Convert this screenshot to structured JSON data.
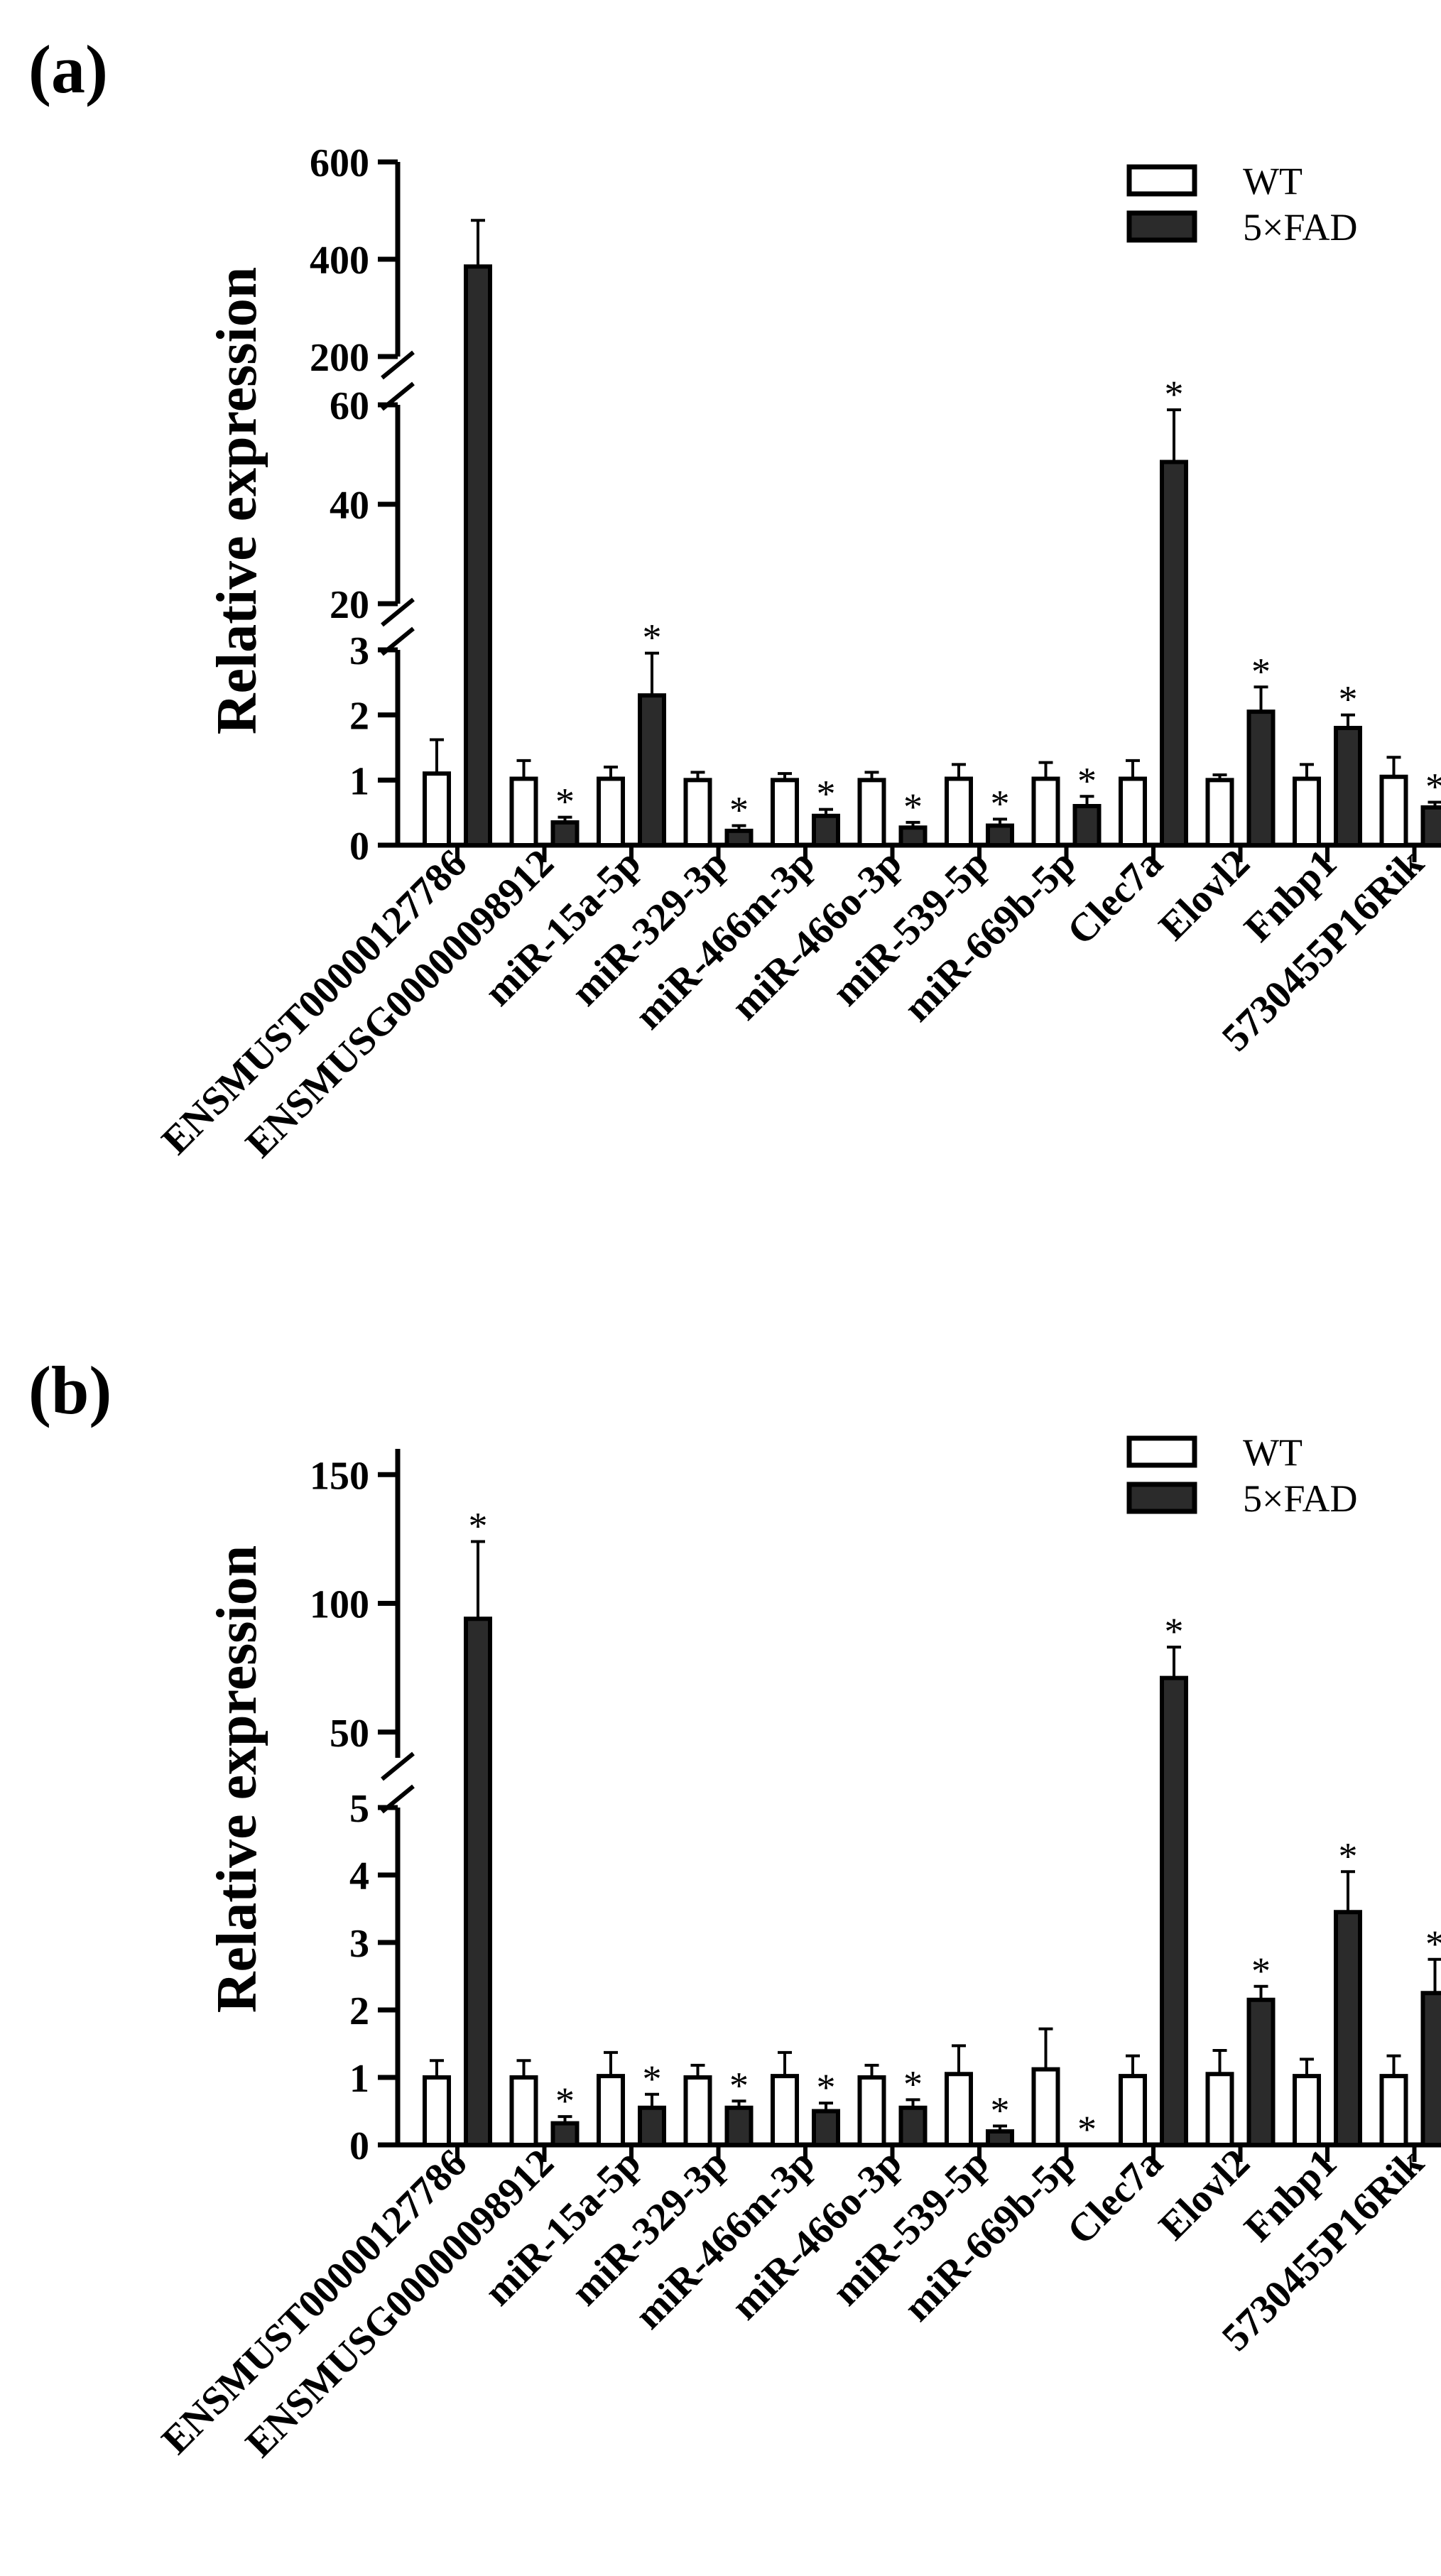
{
  "chart_data": [
    {
      "panel_label": "(a)",
      "type": "bar",
      "ylabel": "Relative expression",
      "legend": [
        {
          "name": "WT",
          "color": "#ffffff"
        },
        {
          "name": "5×FAD",
          "color": "#2b2b2b"
        }
      ],
      "legend_position": "top-right",
      "categories": [
        "ENSMUST00000127786",
        "ENSMUSG00000098912",
        "miR-15a-5p",
        "miR-329-3p",
        "miR-466m-3p",
        "miR-466o-3p",
        "miR-539-5p",
        "miR-669b-5p",
        "Clec7a",
        "Elovl2",
        "Fnbp1",
        "5730455P16Rik"
      ],
      "series": [
        {
          "name": "WT",
          "values": [
            1.1,
            1.02,
            1.02,
            1.0,
            1.0,
            1.0,
            1.02,
            1.02,
            1.02,
            1.0,
            1.02,
            1.05
          ],
          "errors": [
            0.52,
            0.28,
            0.18,
            0.12,
            0.1,
            0.12,
            0.22,
            0.25,
            0.28,
            0.08,
            0.22,
            0.3
          ]
        },
        {
          "name": "5×FAD",
          "values": [
            385,
            0.35,
            2.3,
            0.22,
            0.45,
            0.27,
            0.3,
            0.6,
            48.5,
            2.05,
            1.8,
            0.58
          ],
          "errors": [
            95,
            0.08,
            0.65,
            0.08,
            0.1,
            0.08,
            0.1,
            0.15,
            10.5,
            0.38,
            0.2,
            0.08
          ]
        }
      ],
      "significant": [
        false,
        true,
        true,
        true,
        true,
        true,
        true,
        true,
        true,
        true,
        true,
        true
      ],
      "significance_marker": "*",
      "y_segments": [
        {
          "range": [
            0,
            3
          ],
          "ticks": [
            0,
            1,
            2,
            3
          ]
        },
        {
          "range": [
            20,
            60
          ],
          "ticks": [
            20,
            40,
            60
          ]
        },
        {
          "range": [
            200,
            600
          ],
          "ticks": [
            200,
            400,
            600
          ]
        }
      ]
    },
    {
      "panel_label": "(b)",
      "type": "bar",
      "ylabel": "Relative expression",
      "legend": [
        {
          "name": "WT",
          "color": "#ffffff"
        },
        {
          "name": "5×FAD",
          "color": "#2b2b2b"
        }
      ],
      "legend_position": "top-right",
      "categories": [
        "ENSMUST00000127786",
        "ENSMUSG00000098912",
        "miR-15a-5p",
        "miR-329-3p",
        "miR-466m-3p",
        "miR-466o-3p",
        "miR-539-5p",
        "miR-669b-5p",
        "Clec7a",
        "Elovl2",
        "Fnbp1",
        "5730455P16Rik"
      ],
      "series": [
        {
          "name": "WT",
          "values": [
            1.0,
            1.0,
            1.02,
            1.0,
            1.02,
            1.0,
            1.05,
            1.12,
            1.02,
            1.05,
            1.02,
            1.02
          ],
          "errors": [
            0.25,
            0.25,
            0.35,
            0.18,
            0.35,
            0.18,
            0.42,
            0.6,
            0.3,
            0.35,
            0.25,
            0.3
          ]
        },
        {
          "name": "5×FAD",
          "values": [
            94,
            0.32,
            0.55,
            0.55,
            0.5,
            0.55,
            0.2,
            0.0,
            71,
            2.15,
            3.45,
            2.25
          ],
          "errors": [
            30,
            0.1,
            0.2,
            0.1,
            0.12,
            0.12,
            0.08,
            0.0,
            12,
            0.2,
            0.6,
            0.5
          ]
        }
      ],
      "significant": [
        true,
        true,
        true,
        true,
        true,
        true,
        true,
        true,
        true,
        true,
        true,
        true
      ],
      "significance_marker": "*",
      "y_segments": [
        {
          "range": [
            0,
            5
          ],
          "ticks": [
            0,
            1,
            2,
            3,
            4,
            5
          ]
        },
        {
          "range": [
            40,
            160
          ],
          "ticks": [
            50,
            100,
            150
          ]
        }
      ]
    }
  ]
}
